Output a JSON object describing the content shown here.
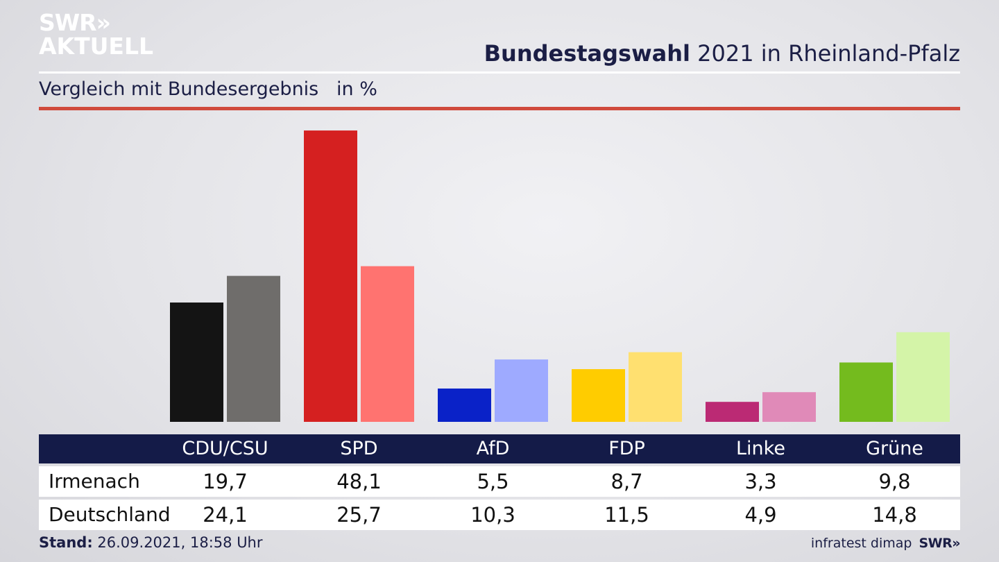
{
  "brand": {
    "line1": "SWR",
    "line1_arrows": "»",
    "line2": "AKTUELL"
  },
  "header": {
    "title_bold": "Bundestagswahl",
    "title_rest": "2021 in Rheinland-Pfalz",
    "subtitle": "Vergleich mit Bundesergebnis   in %"
  },
  "table": {
    "rows": [
      {
        "label": "Irmenach",
        "values": [
          "19,7",
          "48,1",
          "5,5",
          "8,7",
          "3,3",
          "9,8"
        ]
      },
      {
        "label": "Deutschland",
        "values": [
          "24,1",
          "25,7",
          "10,3",
          "11,5",
          "4,9",
          "14,8"
        ]
      }
    ]
  },
  "footer": {
    "stand_label": "Stand:",
    "stand_value": "26.09.2021, 18:58 Uhr",
    "source": "infratest dimap",
    "source_brand": "SWR»"
  },
  "chart_data": {
    "type": "bar",
    "categories": [
      "CDU/CSU",
      "SPD",
      "AfD",
      "FDP",
      "Linke",
      "Grüne"
    ],
    "series": [
      {
        "name": "Irmenach",
        "values": [
          19.7,
          48.1,
          5.5,
          8.7,
          3.3,
          9.8
        ],
        "colors": [
          "#141414",
          "#d52020",
          "#0a22c8",
          "#ffcc00",
          "#bb2a74",
          "#74bb1e"
        ]
      },
      {
        "name": "Deutschland",
        "values": [
          24.1,
          25.7,
          10.3,
          11.5,
          4.9,
          14.8
        ],
        "colors": [
          "#6f6d6b",
          "#ff7370",
          "#9eaaff",
          "#ffe070",
          "#e08ab8",
          "#d4f4a8"
        ]
      }
    ],
    "title": "Bundestagswahl 2021 in Rheinland-Pfalz",
    "subtitle": "Vergleich mit Bundesergebnis   in %",
    "unit": "%",
    "grid": false
  }
}
